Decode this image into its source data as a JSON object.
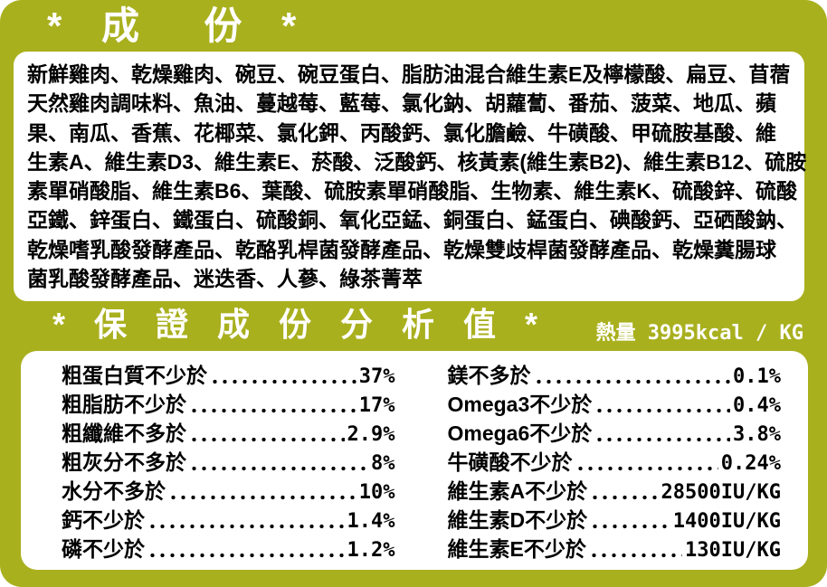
{
  "colors": {
    "background_olive": "#a9b01e",
    "box_white": "#ffffff",
    "text_black": "#000000",
    "title_white": "#ffffff"
  },
  "ingredients": {
    "title": "* 成  份 *",
    "lines": [
      "新鮮雞肉、乾燥雞肉、碗豆、碗豆蛋白、脂肪油混合維生素E及檸檬酸、扁豆、苜蓿",
      "天然雞肉調味料、魚油、蔓越莓、藍莓、氯化鈉、胡蘿蔔、番茄、菠菜、地瓜、蘋",
      "果、南瓜、香蕉、花椰菜、氯化鉀、丙酸鈣、氯化膽鹼、牛磺酸、甲硫胺基酸、維",
      "生素A、維生素D3、維生素E、菸酸、泛酸鈣、核黃素(維生素B2)、維生素B12、硫胺",
      "素單硝酸脂、維生素B6、葉酸、硫胺素單硝酸脂、生物素、維生素K、硫酸鋅、硫酸",
      "亞鐵、鋅蛋白、鐵蛋白、硫酸銅、氧化亞錳、銅蛋白、錳蛋白、碘酸鈣、亞硒酸鈉、",
      "乾燥嗜乳酸發酵產品、乾酪乳桿菌發酵產品、乾燥雙歧桿菌發酵產品、乾燥糞腸球",
      "菌乳酸發酵產品、迷迭香、人蔘、綠茶菁萃"
    ]
  },
  "analysis": {
    "title": "* 保 證 成 份 分 析 值 *",
    "energy": "熱量 3995kcal / KG",
    "left_rows": [
      {
        "label": "粗蛋白質不少於",
        "value": "37%"
      },
      {
        "label": "粗脂肪不少於",
        "value": "17%"
      },
      {
        "label": "粗纖維不多於",
        "value": "2.9%"
      },
      {
        "label": "粗灰分不多於",
        "value": "8%"
      },
      {
        "label": "水分不多於",
        "value": "10%"
      },
      {
        "label": "鈣不少於",
        "value": "1.4%"
      },
      {
        "label": "磷不少於",
        "value": "1.2%"
      }
    ],
    "right_rows": [
      {
        "label": "鎂不多於",
        "value": "0.1%"
      },
      {
        "label": "Omega3不少於",
        "value": "0.4%"
      },
      {
        "label": "Omega6不少於",
        "value": "3.8%"
      },
      {
        "label": "牛磺酸不少於",
        "value": "0.24%"
      },
      {
        "label": "維生素A不少於",
        "value": "28500IU/KG"
      },
      {
        "label": "維生素D不少於",
        "value": "1400IU/KG"
      },
      {
        "label": "維生素E不少於",
        "value": "130IU/KG"
      }
    ]
  }
}
